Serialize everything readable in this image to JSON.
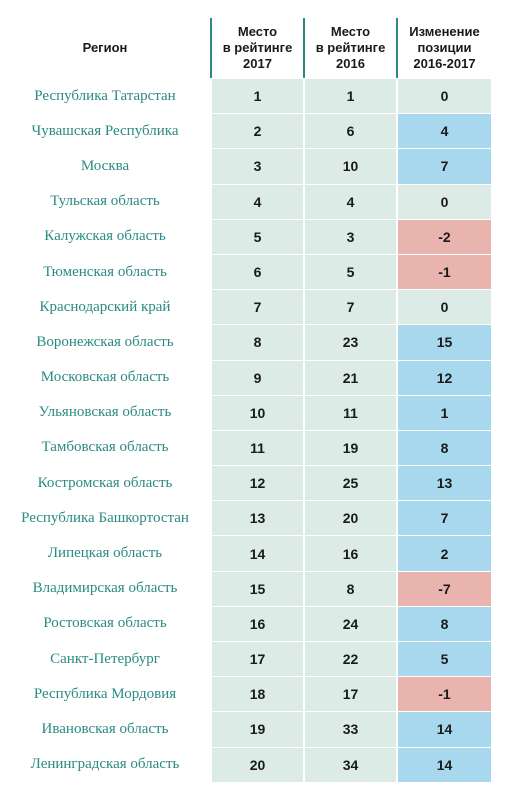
{
  "colors": {
    "region_text": "#2b8a84",
    "neutral_bg": "#dcebe5",
    "positive_bg": "#a8d8ee",
    "negative_bg": "#e8b4ad",
    "header_rule": "#2b8a84"
  },
  "header": {
    "region": "Регион",
    "rank_2017": "Место\nв рейтинге\n2017",
    "rank_2016": "Место\nв рейтинге\n2016",
    "change": "Изменение\nпозиции\n2016-2017"
  },
  "rows": [
    {
      "region": "Республика Татарстан",
      "rank_2017": "1",
      "rank_2016": "1",
      "change": "0",
      "trend": "neutral"
    },
    {
      "region": "Чувашская Республика",
      "rank_2017": "2",
      "rank_2016": "6",
      "change": "4",
      "trend": "positive"
    },
    {
      "region": "Москва",
      "rank_2017": "3",
      "rank_2016": "10",
      "change": "7",
      "trend": "positive"
    },
    {
      "region": "Тульская область",
      "rank_2017": "4",
      "rank_2016": "4",
      "change": "0",
      "trend": "neutral"
    },
    {
      "region": "Калужская область",
      "rank_2017": "5",
      "rank_2016": "3",
      "change": "-2",
      "trend": "negative"
    },
    {
      "region": "Тюменская область",
      "rank_2017": "6",
      "rank_2016": "5",
      "change": "-1",
      "trend": "negative"
    },
    {
      "region": "Краснодарский край",
      "rank_2017": "7",
      "rank_2016": "7",
      "change": "0",
      "trend": "neutral"
    },
    {
      "region": "Воронежская область",
      "rank_2017": "8",
      "rank_2016": "23",
      "change": "15",
      "trend": "positive"
    },
    {
      "region": "Московская область",
      "rank_2017": "9",
      "rank_2016": "21",
      "change": "12",
      "trend": "positive"
    },
    {
      "region": "Ульяновская область",
      "rank_2017": "10",
      "rank_2016": "11",
      "change": "1",
      "trend": "positive"
    },
    {
      "region": "Тамбовская область",
      "rank_2017": "11",
      "rank_2016": "19",
      "change": "8",
      "trend": "positive"
    },
    {
      "region": "Костромская область",
      "rank_2017": "12",
      "rank_2016": "25",
      "change": "13",
      "trend": "positive"
    },
    {
      "region": "Республика Башкортостан",
      "rank_2017": "13",
      "rank_2016": "20",
      "change": "7",
      "trend": "positive"
    },
    {
      "region": "Липецкая область",
      "rank_2017": "14",
      "rank_2016": "16",
      "change": "2",
      "trend": "positive"
    },
    {
      "region": "Владимирская область",
      "rank_2017": "15",
      "rank_2016": "8",
      "change": "-7",
      "trend": "negative"
    },
    {
      "region": "Ростовская область",
      "rank_2017": "16",
      "rank_2016": "24",
      "change": "8",
      "trend": "positive"
    },
    {
      "region": "Санкт-Петербург",
      "rank_2017": "17",
      "rank_2016": "22",
      "change": "5",
      "trend": "positive"
    },
    {
      "region": "Республика Мордовия",
      "rank_2017": "18",
      "rank_2016": "17",
      "change": "-1",
      "trend": "negative"
    },
    {
      "region": "Ивановская область",
      "rank_2017": "19",
      "rank_2016": "33",
      "change": "14",
      "trend": "positive"
    },
    {
      "region": "Ленинградская область",
      "rank_2017": "20",
      "rank_2016": "34",
      "change": "14",
      "trend": "positive"
    }
  ]
}
